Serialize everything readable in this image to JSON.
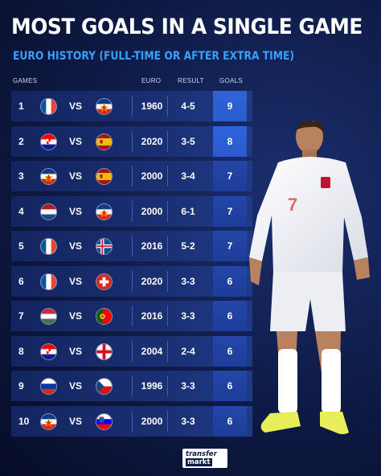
{
  "header": {
    "title": "MOST GOALS IN A SINGLE GAME",
    "subtitle": "EURO HISTORY (FULL-TIME OR AFTER EXTRA TIME)"
  },
  "columns": {
    "games": "GAMES",
    "euro": "EURO",
    "result": "RESULT",
    "goals": "GOALS"
  },
  "rows": [
    {
      "rank": "1",
      "home": "france",
      "vs": "VS",
      "away": "yugoslavia",
      "euro": "1960",
      "result": "4-5",
      "goals": "9"
    },
    {
      "rank": "2",
      "home": "croatia",
      "vs": "VS",
      "away": "spain",
      "euro": "2020",
      "result": "3-5",
      "goals": "8"
    },
    {
      "rank": "3",
      "home": "yugoslavia",
      "vs": "VS",
      "away": "spain",
      "euro": "2000",
      "result": "3-4",
      "goals": "7"
    },
    {
      "rank": "4",
      "home": "netherlands",
      "vs": "VS",
      "away": "yugoslavia",
      "euro": "2000",
      "result": "6-1",
      "goals": "7"
    },
    {
      "rank": "5",
      "home": "france",
      "vs": "VS",
      "away": "iceland",
      "euro": "2016",
      "result": "5-2",
      "goals": "7"
    },
    {
      "rank": "6",
      "home": "france",
      "vs": "VS",
      "away": "switzerland",
      "euro": "2020",
      "result": "3-3",
      "goals": "6"
    },
    {
      "rank": "7",
      "home": "hungary",
      "vs": "VS",
      "away": "portugal",
      "euro": "2016",
      "result": "3-3",
      "goals": "6"
    },
    {
      "rank": "8",
      "home": "croatia",
      "vs": "VS",
      "away": "england",
      "euro": "2004",
      "result": "2-4",
      "goals": "6"
    },
    {
      "rank": "9",
      "home": "russia",
      "vs": "VS",
      "away": "czechia",
      "euro": "1996",
      "result": "3-3",
      "goals": "6"
    },
    {
      "rank": "10",
      "home": "yugoslavia",
      "vs": "VS",
      "away": "slovenia",
      "euro": "2000",
      "result": "3-3",
      "goals": "6"
    }
  ],
  "player": {
    "shirt_number": "7"
  },
  "logo": {
    "line1": "transfer",
    "line2": "markt"
  },
  "colors": {
    "background": "#0e1a45",
    "accent": "#3aa0ff",
    "row": "#1a2f72",
    "goals_highlight": "#2a5ccc"
  }
}
